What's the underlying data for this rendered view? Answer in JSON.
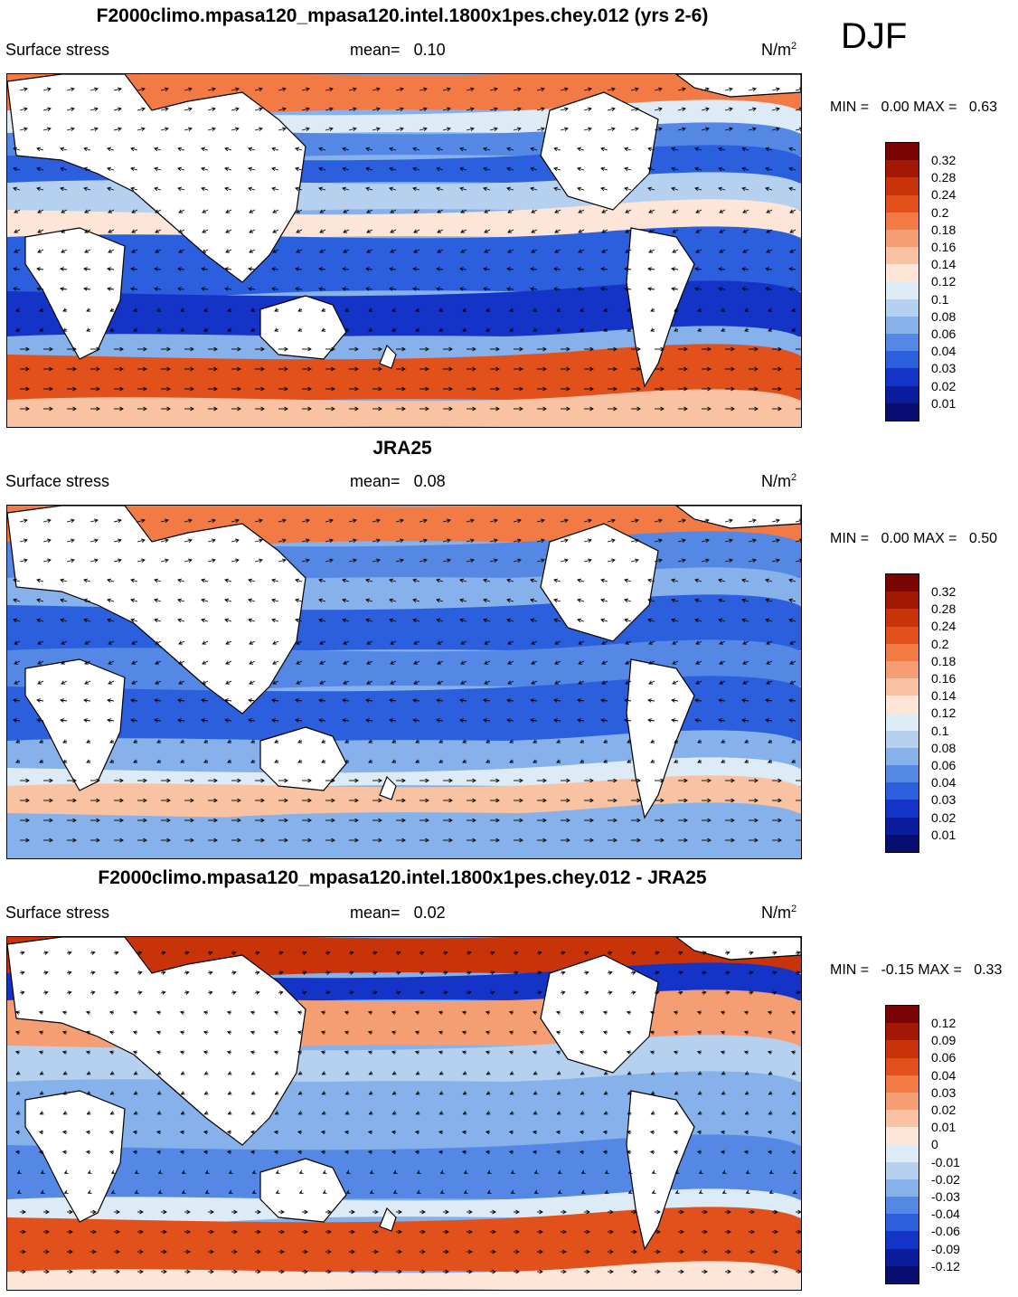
{
  "season": "DJF",
  "panels": [
    {
      "title": "F2000climo.mpasa120_mpasa120.intel.1800x1pes.chey.012 (yrs 2-6)",
      "variable": "Surface stress",
      "mean_label": "mean=",
      "mean_value": "0.10",
      "units": "N/m",
      "units_sup": "2",
      "min_label": "MIN =",
      "min_value": "0.00",
      "max_label": "MAX =",
      "max_value": "0.63",
      "colorbar": [
        "0.32",
        "0.28",
        "0.24",
        "0.2",
        "0.18",
        "0.16",
        "0.14",
        "0.12",
        "0.1",
        "0.08",
        "0.06",
        "0.04",
        "0.03",
        "0.02",
        "0.01"
      ]
    },
    {
      "title": "JRA25",
      "variable": "Surface stress",
      "mean_label": "mean=",
      "mean_value": "0.08",
      "units": "N/m",
      "units_sup": "2",
      "min_label": "MIN =",
      "min_value": "0.00",
      "max_label": "MAX =",
      "max_value": "0.50",
      "colorbar": [
        "0.32",
        "0.28",
        "0.24",
        "0.2",
        "0.18",
        "0.16",
        "0.14",
        "0.12",
        "0.1",
        "0.08",
        "0.06",
        "0.04",
        "0.03",
        "0.02",
        "0.01"
      ]
    },
    {
      "title": "F2000climo.mpasa120_mpasa120.intel.1800x1pes.chey.012 - JRA25",
      "variable": "Surface stress",
      "mean_label": "mean=",
      "mean_value": "0.02",
      "units": "N/m",
      "units_sup": "2",
      "min_label": "MIN =",
      "min_value": "-0.15",
      "max_label": "MAX =",
      "max_value": "0.33",
      "colorbar": [
        "0.12",
        "0.09",
        "0.06",
        "0.04",
        "0.03",
        "0.02",
        "0.01",
        "0",
        "-0.01",
        "-0.02",
        "-0.03",
        "-0.04",
        "-0.06",
        "-0.09",
        "-0.12"
      ]
    }
  ],
  "colors": {
    "levels16": [
      "#7a0403",
      "#a31804",
      "#c9330a",
      "#e2501c",
      "#f17a45",
      "#f69e73",
      "#f9c3a3",
      "#fde6d8",
      "#ddebf7",
      "#b6d1f0",
      "#86b1ea",
      "#5588e4",
      "#2b5fde",
      "#1434c8",
      "#0b1d9d",
      "#070e70"
    ],
    "land": "#ffffff",
    "coast": "#000000"
  }
}
